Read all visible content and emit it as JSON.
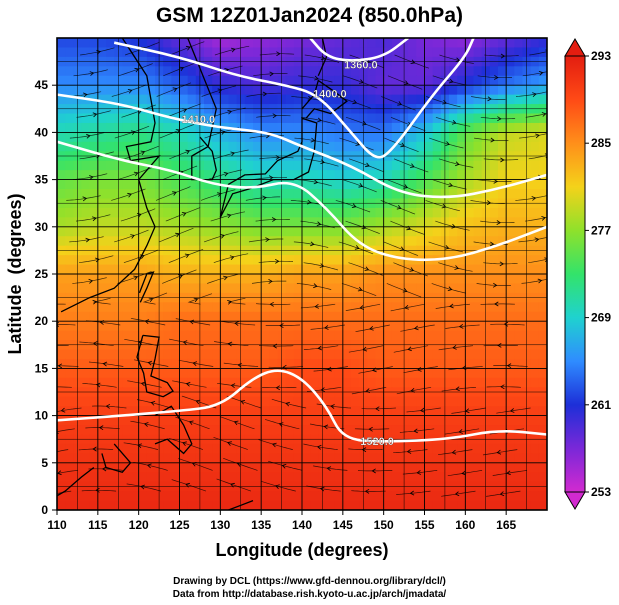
{
  "title": "GSM 12Z01Jan2024 (850.0hPa)",
  "footer": {
    "line1": "Drawing by DCL (https://www.gfd-dennou.org/library/dcl/)",
    "line2": "Data from http://database.rish.kyoto-u.ac.jp/arch/jmadata/"
  },
  "chart_data": {
    "type": "heatmap",
    "title": "GSM 12Z01Jan2024 (850.0hPa)",
    "xlabel": "Longitude (degrees)",
    "ylabel": "Latitude  (degrees)",
    "xlim": [
      110,
      170
    ],
    "ylim": [
      0,
      50
    ],
    "x_ticks": [
      110,
      115,
      120,
      125,
      130,
      135,
      140,
      145,
      150,
      155,
      160,
      165
    ],
    "y_ticks": [
      0,
      5,
      10,
      15,
      20,
      25,
      30,
      35,
      40,
      45
    ],
    "grid": true,
    "overlays": [
      "temperature shading",
      "wind streamlines",
      "geopotential height contours",
      "coastlines"
    ],
    "colorbar": {
      "position": "right",
      "min": 253,
      "max": 293,
      "tick_labels": [
        "253",
        "261",
        "269",
        "277",
        "285",
        "293"
      ],
      "colors": [
        "#d22ad0",
        "#7a28d8",
        "#1d2fd8",
        "#2f8cff",
        "#1fd2cf",
        "#33e36a",
        "#8fe12b",
        "#f4d21a",
        "#ff8f1a",
        "#ff4a16",
        "#e31d10"
      ]
    },
    "temperature_field": [
      {
        "lat": 50,
        "values": [
          262,
          262,
          261,
          258,
          255,
          256,
          257,
          258,
          259,
          257,
          256,
          258,
          260
        ]
      },
      {
        "lat": 45,
        "values": [
          265,
          265,
          265,
          263,
          260,
          259,
          260,
          260,
          258,
          258,
          261,
          264,
          266
        ]
      },
      {
        "lat": 40,
        "values": [
          270,
          271,
          272,
          270,
          267,
          265,
          265,
          264,
          264,
          268,
          275,
          279,
          280
        ]
      },
      {
        "lat": 35,
        "values": [
          275,
          276,
          276,
          274,
          272,
          270,
          270,
          269,
          270,
          274,
          278,
          281,
          281
        ]
      },
      {
        "lat": 30,
        "values": [
          278,
          279,
          279,
          278,
          277,
          276,
          276,
          276,
          278,
          280,
          282,
          283,
          283
        ]
      },
      {
        "lat": 25,
        "values": [
          284,
          284,
          284,
          283,
          283,
          283,
          284,
          284,
          285,
          285,
          285,
          285,
          285
        ]
      },
      {
        "lat": 20,
        "values": [
          286,
          286,
          286,
          287,
          287,
          287,
          287,
          287,
          287,
          287,
          287,
          287,
          287
        ]
      },
      {
        "lat": 15,
        "values": [
          288,
          288,
          288,
          288,
          288,
          288,
          289,
          289,
          288,
          288,
          288,
          288,
          288
        ]
      },
      {
        "lat": 10,
        "values": [
          290,
          290,
          290,
          290,
          290,
          290,
          290,
          290,
          290,
          290,
          290,
          290,
          290
        ]
      },
      {
        "lat": 5,
        "values": [
          291,
          291,
          291,
          291,
          291,
          291,
          291,
          291,
          291,
          291,
          291,
          291,
          291
        ]
      },
      {
        "lat": 0,
        "values": [
          292,
          292,
          292,
          292,
          292,
          292,
          292,
          292,
          292,
          292,
          292,
          292,
          292
        ]
      }
    ],
    "field_lons": [
      110,
      115,
      120,
      125,
      130,
      135,
      140,
      145,
      150,
      155,
      160,
      165,
      170
    ],
    "height_contours": [
      {
        "label": "1360.0",
        "label_at": [
          147.2,
          47.2
        ],
        "points": [
          [
            141,
            50
          ],
          [
            143,
            48
          ],
          [
            146,
            47.5
          ],
          [
            150,
            48
          ],
          [
            153,
            50
          ]
        ]
      },
      {
        "label": "1400.0",
        "label_at": [
          143.4,
          44.1
        ],
        "points": [
          [
            117,
            49.5
          ],
          [
            125,
            48
          ],
          [
            132,
            46
          ],
          [
            138,
            45
          ],
          [
            142,
            44
          ],
          [
            146,
            40
          ],
          [
            149,
            37
          ],
          [
            151,
            38
          ],
          [
            156,
            44
          ],
          [
            160,
            48
          ],
          [
            161,
            50
          ]
        ]
      },
      {
        "label": "1410.0",
        "label_at": [
          127.3,
          41.4
        ],
        "points": [
          [
            110,
            44
          ],
          [
            118,
            43
          ],
          [
            124,
            41.5
          ],
          [
            130,
            40.5
          ],
          [
            136,
            40
          ],
          [
            140,
            38.5
          ],
          [
            146,
            36.5
          ],
          [
            152,
            33.5
          ],
          [
            158,
            33
          ],
          [
            164,
            34
          ],
          [
            170,
            35.5
          ]
        ]
      },
      {
        "label": "",
        "label_at": null,
        "points": [
          [
            110,
            39
          ],
          [
            118,
            37
          ],
          [
            124,
            36
          ],
          [
            129,
            34.5
          ],
          [
            134,
            34
          ],
          [
            139,
            35
          ],
          [
            143,
            32
          ],
          [
            147,
            28
          ],
          [
            152,
            26.5
          ],
          [
            158,
            26.5
          ],
          [
            164,
            28
          ],
          [
            170,
            30
          ]
        ]
      },
      {
        "label": "1520.0",
        "label_at": [
          149.2,
          7.3
        ],
        "points": [
          [
            110,
            9.5
          ],
          [
            118,
            10
          ],
          [
            125,
            10.5
          ],
          [
            130,
            11
          ],
          [
            134,
            14
          ],
          [
            137,
            15
          ],
          [
            140,
            14
          ],
          [
            143,
            11
          ],
          [
            145,
            7.5
          ],
          [
            150,
            7.2
          ],
          [
            158,
            7.5
          ],
          [
            164,
            8.5
          ],
          [
            170,
            8
          ]
        ]
      }
    ]
  }
}
